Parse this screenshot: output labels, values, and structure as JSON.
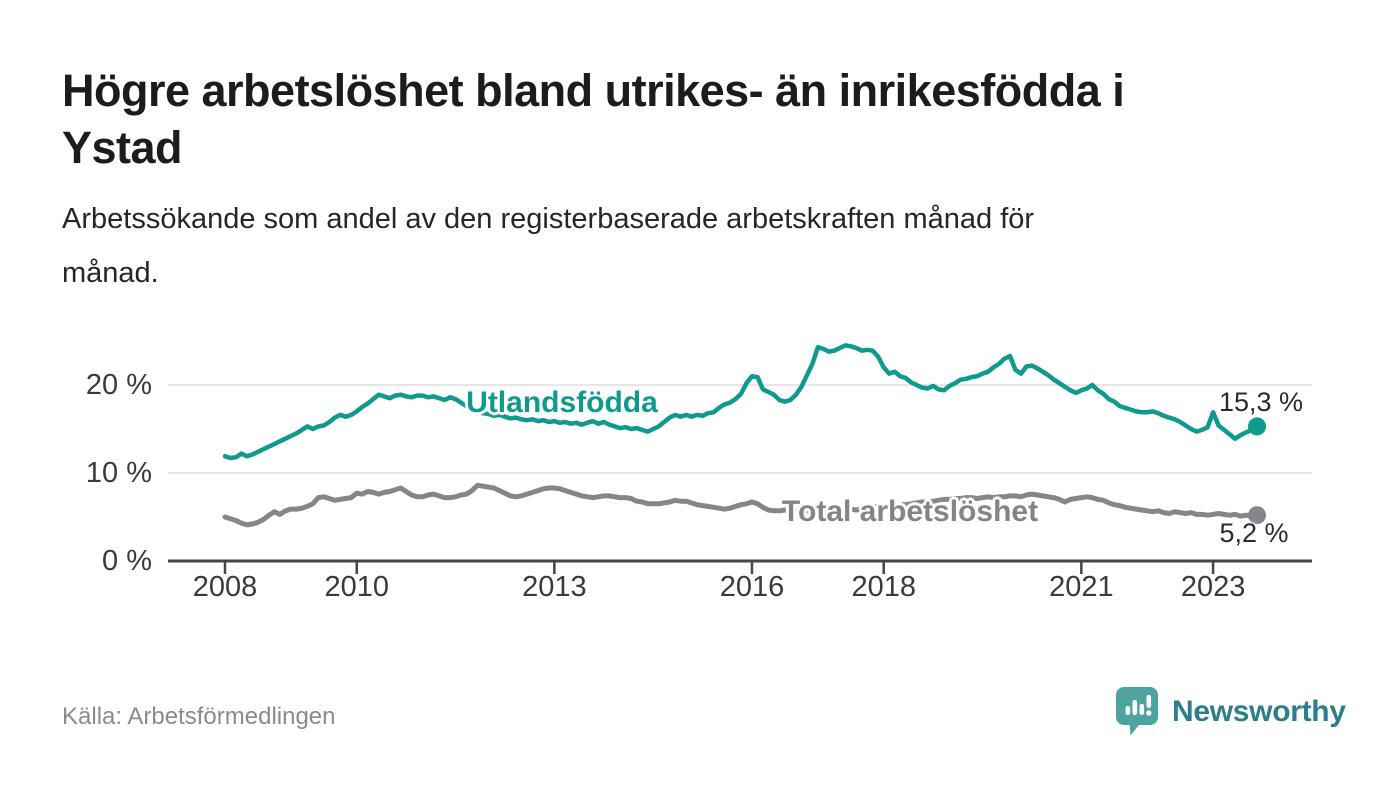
{
  "header": {
    "title_line1": "Högre arbetslöshet bland utrikes- än inrikesfödda i",
    "title_line2": "Ystad",
    "subtitle_line1": "Arbetssökande som andel av den registerbaserade arbetskraften månad för",
    "subtitle_line2": "månad."
  },
  "footer": {
    "source": "Källa: Arbetsförmedlingen",
    "brand": "Newsworthy"
  },
  "colors": {
    "teal_series": "#0e9a8d",
    "gray_series": "#85858c",
    "axis": "#45454a",
    "grid": "#dedede",
    "brand_icon": "#4da49e",
    "brand_text": "#2c7f8a"
  },
  "chart_data": {
    "type": "line",
    "unit": "%",
    "x_interval": "monthly",
    "x_start": "2008-01",
    "x_end": "2023-09",
    "x_tick_years": [
      2008,
      2010,
      2013,
      2016,
      2018,
      2021,
      2023
    ],
    "y_tick_labels": [
      "20 %",
      "10 %",
      "0 %"
    ],
    "y_gridlines_pct": [
      20,
      10
    ],
    "ylim": [
      0,
      26
    ],
    "grid": "horizontal",
    "legend_position": "inline-labels",
    "series": [
      {
        "id": "utlandsfodda",
        "name": "Utlandsfödda",
        "color": "#0e9a8d",
        "end_label": "15,3 %",
        "end_value": 15.3,
        "values": [
          11.9,
          11.7,
          11.8,
          12.2,
          11.9,
          12.1,
          12.4,
          12.7,
          13.0,
          13.3,
          13.6,
          13.9,
          14.2,
          14.5,
          14.9,
          15.3,
          15.0,
          15.3,
          15.4,
          15.8,
          16.3,
          16.6,
          16.4,
          16.6,
          17.0,
          17.5,
          17.9,
          18.4,
          18.9,
          18.7,
          18.5,
          18.8,
          18.9,
          18.7,
          18.6,
          18.8,
          18.8,
          18.6,
          18.7,
          18.5,
          18.3,
          18.6,
          18.4,
          18.0,
          17.6,
          17.2,
          16.9,
          16.8,
          16.7,
          16.5,
          16.6,
          16.4,
          16.2,
          16.3,
          16.1,
          16.0,
          16.1,
          15.9,
          16.0,
          15.8,
          15.9,
          15.7,
          15.8,
          15.6,
          15.7,
          15.5,
          15.7,
          15.9,
          15.6,
          15.8,
          15.5,
          15.3,
          15.1,
          15.2,
          15.0,
          15.1,
          14.9,
          14.7,
          15.0,
          15.3,
          15.8,
          16.3,
          16.6,
          16.4,
          16.6,
          16.4,
          16.6,
          16.5,
          16.8,
          16.9,
          17.4,
          17.8,
          18.0,
          18.4,
          19.0,
          20.2,
          21.0,
          20.9,
          19.5,
          19.2,
          18.9,
          18.3,
          18.1,
          18.3,
          18.9,
          19.8,
          21.1,
          22.4,
          24.3,
          24.1,
          23.8,
          23.9,
          24.2,
          24.5,
          24.4,
          24.2,
          23.9,
          24.0,
          23.9,
          23.2,
          22.0,
          21.3,
          21.5,
          21.0,
          20.8,
          20.3,
          20.0,
          19.7,
          19.6,
          19.9,
          19.5,
          19.4,
          19.9,
          20.2,
          20.6,
          20.7,
          20.9,
          21.0,
          21.3,
          21.5,
          22.0,
          22.4,
          23.0,
          23.3,
          21.7,
          21.3,
          22.1,
          22.2,
          21.9,
          21.5,
          21.1,
          20.6,
          20.2,
          19.8,
          19.4,
          19.1,
          19.4,
          19.6,
          20.0,
          19.4,
          19.0,
          18.4,
          18.1,
          17.6,
          17.4,
          17.2,
          17.0,
          16.9,
          16.9,
          17.0,
          16.8,
          16.5,
          16.3,
          16.1,
          15.8,
          15.4,
          15.0,
          14.7,
          14.9,
          15.2,
          16.9,
          15.4,
          14.9,
          14.4,
          13.9,
          14.3,
          14.6,
          14.9,
          15.3
        ]
      },
      {
        "id": "total-arbetsloshet",
        "name": "Total arbetslöshet",
        "color": "#85858c",
        "end_label": "5,2 %",
        "end_value": 5.2,
        "values": [
          5.0,
          4.8,
          4.6,
          4.3,
          4.1,
          4.2,
          4.4,
          4.7,
          5.2,
          5.6,
          5.3,
          5.7,
          5.9,
          5.9,
          6.0,
          6.2,
          6.5,
          7.2,
          7.3,
          7.1,
          6.9,
          7.0,
          7.1,
          7.2,
          7.7,
          7.6,
          7.9,
          7.8,
          7.6,
          7.8,
          7.9,
          8.1,
          8.3,
          7.9,
          7.5,
          7.3,
          7.3,
          7.5,
          7.6,
          7.4,
          7.2,
          7.2,
          7.3,
          7.5,
          7.6,
          8.0,
          8.6,
          8.5,
          8.4,
          8.3,
          8.0,
          7.7,
          7.4,
          7.3,
          7.4,
          7.6,
          7.8,
          8.0,
          8.2,
          8.3,
          8.3,
          8.2,
          8.0,
          7.8,
          7.6,
          7.4,
          7.3,
          7.2,
          7.3,
          7.4,
          7.4,
          7.3,
          7.2,
          7.2,
          7.1,
          6.8,
          6.7,
          6.5,
          6.5,
          6.5,
          6.6,
          6.7,
          6.9,
          6.8,
          6.8,
          6.6,
          6.4,
          6.3,
          6.2,
          6.1,
          6.0,
          5.9,
          6.0,
          6.2,
          6.4,
          6.5,
          6.7,
          6.5,
          6.1,
          5.8,
          5.7,
          5.7,
          5.8,
          5.7,
          5.6,
          5.6,
          5.7,
          5.8,
          5.8,
          5.9,
          5.8,
          5.7,
          5.7,
          5.8,
          5.9,
          5.8,
          5.9,
          6.0,
          6.1,
          6.2,
          6.2,
          6.3,
          6.3,
          6.4,
          6.4,
          6.5,
          6.6,
          6.7,
          6.7,
          6.8,
          6.9,
          7.0,
          7.0,
          7.1,
          7.1,
          7.2,
          7.2,
          7.1,
          7.2,
          7.3,
          7.2,
          7.3,
          7.3,
          7.4,
          7.4,
          7.3,
          7.5,
          7.6,
          7.5,
          7.4,
          7.3,
          7.2,
          7.0,
          6.7,
          7.0,
          7.1,
          7.2,
          7.3,
          7.2,
          7.0,
          6.9,
          6.6,
          6.4,
          6.3,
          6.1,
          6.0,
          5.9,
          5.8,
          5.7,
          5.6,
          5.7,
          5.5,
          5.4,
          5.6,
          5.5,
          5.4,
          5.5,
          5.3,
          5.3,
          5.2,
          5.3,
          5.4,
          5.3,
          5.2,
          5.3,
          5.1,
          5.2,
          5.1,
          5.2
        ]
      }
    ]
  }
}
